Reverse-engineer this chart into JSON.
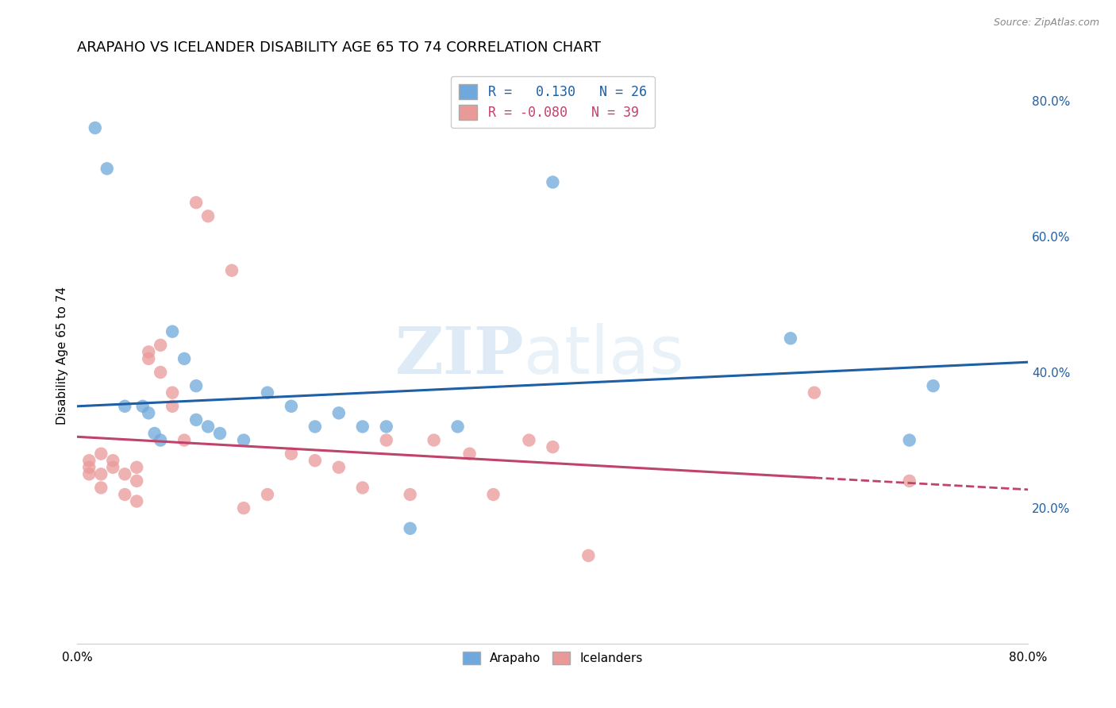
{
  "title": "ARAPAHO VS ICELANDER DISABILITY AGE 65 TO 74 CORRELATION CHART",
  "source": "Source: ZipAtlas.com",
  "ylabel": "Disability Age 65 to 74",
  "xlim": [
    0.0,
    0.8
  ],
  "ylim": [
    0.0,
    0.85
  ],
  "x_ticks": [
    0.0,
    0.1,
    0.2,
    0.3,
    0.4,
    0.5,
    0.6,
    0.7,
    0.8
  ],
  "x_tick_labels": [
    "0.0%",
    "",
    "",
    "",
    "",
    "",
    "",
    "",
    "80.0%"
  ],
  "y_ticks_right": [
    0.2,
    0.4,
    0.6,
    0.8
  ],
  "y_tick_labels_right": [
    "20.0%",
    "40.0%",
    "60.0%",
    "80.0%"
  ],
  "arapaho_color": "#6fa8dc",
  "icelander_color": "#ea9999",
  "arapaho_line_color": "#1f5fa6",
  "icelander_line_color": "#c0436a",
  "watermark_zip": "ZIP",
  "watermark_atlas": "atlas",
  "legend_R_arapaho": "R =   0.130",
  "legend_N_arapaho": "N = 26",
  "legend_R_icelander": "R = -0.080",
  "legend_N_icelander": "N = 39",
  "arapaho_x": [
    0.015,
    0.025,
    0.04,
    0.055,
    0.06,
    0.065,
    0.07,
    0.08,
    0.09,
    0.1,
    0.1,
    0.11,
    0.12,
    0.14,
    0.16,
    0.18,
    0.2,
    0.22,
    0.24,
    0.26,
    0.28,
    0.32,
    0.4,
    0.6,
    0.7,
    0.72
  ],
  "arapaho_y": [
    0.76,
    0.7,
    0.35,
    0.35,
    0.34,
    0.31,
    0.3,
    0.46,
    0.42,
    0.38,
    0.33,
    0.32,
    0.31,
    0.3,
    0.37,
    0.35,
    0.32,
    0.34,
    0.32,
    0.32,
    0.17,
    0.32,
    0.68,
    0.45,
    0.3,
    0.38
  ],
  "icelander_x": [
    0.01,
    0.01,
    0.01,
    0.02,
    0.02,
    0.02,
    0.03,
    0.03,
    0.04,
    0.04,
    0.05,
    0.05,
    0.05,
    0.06,
    0.06,
    0.07,
    0.07,
    0.08,
    0.08,
    0.09,
    0.1,
    0.11,
    0.13,
    0.14,
    0.16,
    0.18,
    0.2,
    0.22,
    0.24,
    0.26,
    0.28,
    0.3,
    0.33,
    0.35,
    0.38,
    0.4,
    0.43,
    0.62,
    0.7
  ],
  "icelander_y": [
    0.27,
    0.26,
    0.25,
    0.28,
    0.25,
    0.23,
    0.27,
    0.26,
    0.25,
    0.22,
    0.26,
    0.24,
    0.21,
    0.43,
    0.42,
    0.44,
    0.4,
    0.37,
    0.35,
    0.3,
    0.65,
    0.63,
    0.55,
    0.2,
    0.22,
    0.28,
    0.27,
    0.26,
    0.23,
    0.3,
    0.22,
    0.3,
    0.28,
    0.22,
    0.3,
    0.29,
    0.13,
    0.37,
    0.24
  ],
  "arapaho_trend_x": [
    0.0,
    0.8
  ],
  "arapaho_trend_y": [
    0.35,
    0.415
  ],
  "icelander_trend_x": [
    0.0,
    0.72
  ],
  "icelander_trend_y": [
    0.305,
    0.235
  ],
  "background_color": "#ffffff",
  "grid_color": "#cccccc"
}
